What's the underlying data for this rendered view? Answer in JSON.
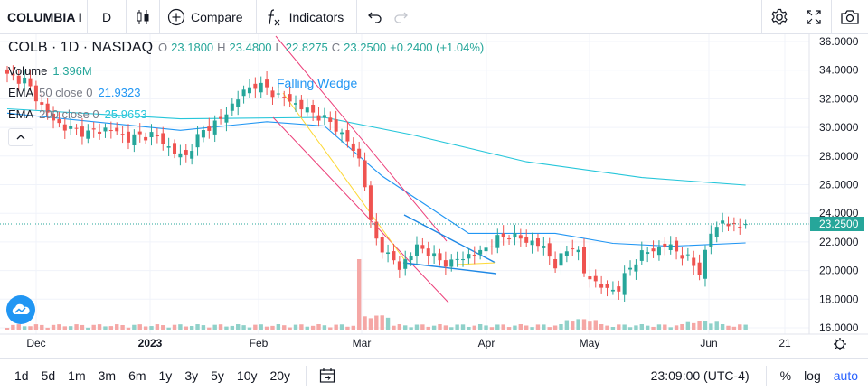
{
  "toolbar": {
    "symbol": "COLUMBIA I",
    "interval": "D",
    "compare_label": "Compare",
    "indicators_label": "Indicators",
    "icons": [
      "candles-icon",
      "plus-circle-icon",
      "fx-icon",
      "undo-icon",
      "redo-icon",
      "gear-icon",
      "fullscreen-icon",
      "camera-icon"
    ]
  },
  "legend": {
    "title": "COLB · 1D · NASDAQ",
    "open_label": "O",
    "open": "23.1800",
    "high_label": "H",
    "high": "23.4800",
    "low_label": "L",
    "low": "22.8275",
    "close_label": "C",
    "close": "23.2500",
    "change": "+0.2400 (+1.04%)",
    "volume_label": "Volume",
    "volume_value": "1.396M",
    "ema50_label": "EMA",
    "ema50_params": "50 close 0",
    "ema50_value": "21.9323",
    "ema200_label": "EMA",
    "ema200_params": "200 close 0",
    "ema200_value": "25.9653"
  },
  "drawing_label": "Falling Wedge",
  "price_axis": {
    "ticks": [
      "36.0000",
      "34.0000",
      "32.0000",
      "30.0000",
      "28.0000",
      "26.0000",
      "24.0000",
      "22.0000",
      "20.0000",
      "18.0000",
      "16.0000"
    ],
    "last_price": "23.2500"
  },
  "time_axis": {
    "labels": [
      "Dec",
      "2023",
      "Feb",
      "Mar",
      "Apr",
      "May",
      "Jun",
      "21"
    ]
  },
  "bottom": {
    "ranges": [
      "1d",
      "5d",
      "1m",
      "3m",
      "6m",
      "1y",
      "3y",
      "5y",
      "10y",
      "20y"
    ],
    "time": "23:09:00 (UTC-4)",
    "percent": "%",
    "log": "log",
    "auto": "auto"
  },
  "colors": {
    "up": "#26a69a",
    "down": "#ef5350",
    "ema50": "#2196f3",
    "ema200": "#26c6da",
    "vol_up": "#8fd1c9",
    "vol_down": "#f5a7a5",
    "last_price": "#26a69a",
    "accent": "#2962ff",
    "wedge_channel": "#ec407a",
    "wedge_line": "#fdd835",
    "wedge_blue": "#1e88e5"
  },
  "chart_data": {
    "type": "candlestick",
    "symbol": "COLB",
    "interval": "1D",
    "exchange": "NASDAQ",
    "ylim": [
      16,
      36
    ],
    "series_points": [
      [
        0,
        33.6
      ],
      [
        3,
        33.3
      ],
      [
        6,
        31.5
      ],
      [
        8,
        30.5
      ],
      [
        10,
        30.0
      ],
      [
        12,
        29.8
      ],
      [
        14,
        29.6
      ],
      [
        17,
        29.9
      ],
      [
        19,
        29.7
      ],
      [
        21,
        29.2
      ],
      [
        23,
        29.4
      ],
      [
        25,
        29.5
      ],
      [
        27,
        29.0
      ],
      [
        29,
        28.2
      ],
      [
        31,
        28.0
      ],
      [
        33,
        29.3
      ],
      [
        35,
        30.1
      ],
      [
        37,
        30.5
      ],
      [
        39,
        31.6
      ],
      [
        41,
        32.5
      ],
      [
        43,
        33.0
      ],
      [
        45,
        32.7
      ],
      [
        47,
        32.2
      ],
      [
        49,
        31.9
      ],
      [
        51,
        31.4
      ],
      [
        53,
        31.0
      ],
      [
        55,
        30.6
      ],
      [
        57,
        30.0
      ],
      [
        59,
        29.0
      ],
      [
        61,
        27.8
      ],
      [
        62,
        26.0
      ],
      [
        63,
        23.3
      ],
      [
        64,
        22.2
      ],
      [
        66,
        21.0
      ],
      [
        68,
        20.3
      ],
      [
        70,
        21.0
      ],
      [
        71,
        21.8
      ],
      [
        73,
        21.2
      ],
      [
        75,
        20.7
      ],
      [
        77,
        20.5
      ],
      [
        79,
        21.0
      ],
      [
        81,
        21.1
      ],
      [
        83,
        21.6
      ],
      [
        85,
        22.2
      ],
      [
        87,
        22.5
      ],
      [
        89,
        22.2
      ],
      [
        91,
        22.0
      ],
      [
        93,
        21.6
      ],
      [
        95,
        20.4
      ],
      [
        96,
        20.9
      ],
      [
        98,
        21.8
      ],
      [
        99,
        21.2
      ],
      [
        100,
        19.8
      ],
      [
        102,
        19.2
      ],
      [
        104,
        18.6
      ],
      [
        106,
        18.8
      ],
      [
        108,
        20.2
      ],
      [
        110,
        21.2
      ],
      [
        112,
        21.4
      ],
      [
        114,
        21.8
      ],
      [
        116,
        21.4
      ],
      [
        118,
        20.8
      ],
      [
        120,
        19.9
      ],
      [
        122,
        22.6
      ],
      [
        124,
        23.5
      ],
      [
        126,
        23.0
      ],
      [
        128,
        23.25
      ]
    ],
    "ema50": [
      [
        0,
        31.0
      ],
      [
        30,
        29.8
      ],
      [
        45,
        30.4
      ],
      [
        55,
        30.1
      ],
      [
        65,
        26.6
      ],
      [
        80,
        22.6
      ],
      [
        95,
        22.6
      ],
      [
        105,
        21.9
      ],
      [
        115,
        21.7
      ],
      [
        128,
        21.93
      ]
    ],
    "ema200": [
      [
        0,
        31.3
      ],
      [
        30,
        30.6
      ],
      [
        55,
        30.7
      ],
      [
        70,
        29.5
      ],
      [
        90,
        27.6
      ],
      [
        110,
        26.5
      ],
      [
        128,
        25.97
      ]
    ],
    "last_price": 23.25
  }
}
